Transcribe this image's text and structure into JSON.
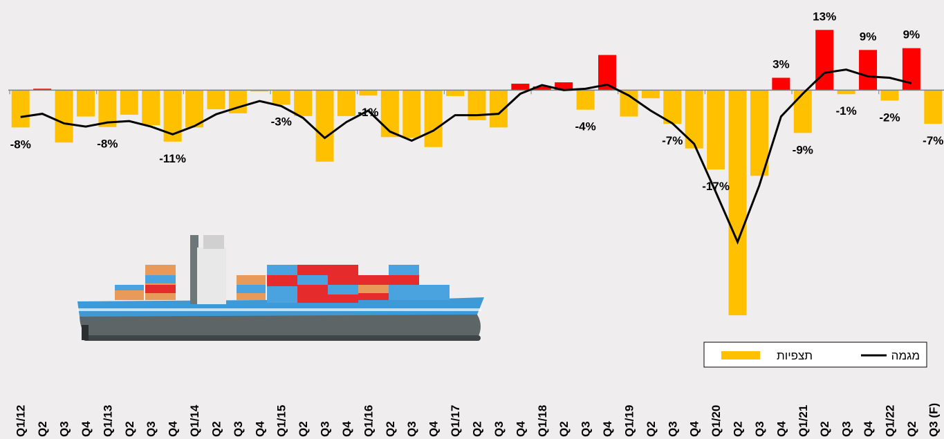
{
  "chart_data": {
    "type": "bar",
    "categories": [
      "Q1/12",
      "Q2",
      "Q3",
      "Q4",
      "Q1/13",
      "Q2",
      "Q3",
      "Q4",
      "Q1/14",
      "Q2",
      "Q3",
      "Q4",
      "Q1/15",
      "Q2",
      "Q3",
      "Q4",
      "Q1/16",
      "Q2",
      "Q3",
      "Q4",
      "Q1/17",
      "Q2",
      "Q3",
      "Q4",
      "Q1/18",
      "Q2",
      "Q3",
      "Q4",
      "Q1/19",
      "Q2",
      "Q3",
      "Q4",
      "Q1/20",
      "Q2",
      "Q3",
      "Q4",
      "Q1/21",
      "Q2",
      "Q3",
      "Q4",
      "Q1/22",
      "Q2",
      "Q3 (F)"
    ],
    "series": [
      {
        "name": "תצפיות",
        "type": "bar",
        "color": "#ffc000",
        "positive_color": "#ff0000",
        "values": [
          -8.2,
          0.3,
          -11.5,
          -5.8,
          -8.1,
          -5.4,
          -7.7,
          -11.3,
          -8.2,
          -4.2,
          -5.1,
          -0.3,
          -3.2,
          -5.7,
          -15.7,
          -5.7,
          -1.2,
          -10.3,
          -10.5,
          -12.5,
          -1.3,
          -6.6,
          -8.2,
          1.4,
          0.8,
          1.7,
          -4.3,
          7.7,
          -5.8,
          -1.8,
          -7.4,
          -12.8,
          -17.4,
          -49.4,
          -18.8,
          2.7,
          -9.4,
          13.2,
          -0.9,
          8.8,
          -2.3,
          9.2,
          -7.4
        ],
        "value_labels": [
          "-8%",
          null,
          null,
          null,
          "-8%",
          null,
          null,
          "-11%",
          null,
          null,
          null,
          null,
          "-3%",
          null,
          null,
          null,
          "-1%",
          null,
          null,
          null,
          null,
          null,
          null,
          null,
          null,
          null,
          "-4%",
          null,
          null,
          null,
          "-7%",
          null,
          "-17%",
          null,
          null,
          "3%",
          "-9%",
          "13%",
          "-1%",
          "9%",
          "-2%",
          "9%",
          "-7%"
        ]
      },
      {
        "name": "מגמה",
        "type": "line",
        "color": "#000000",
        "values": [
          -5.9,
          -5.2,
          -7.3,
          -8.0,
          -7.1,
          -6.8,
          -8.0,
          -9.7,
          -7.9,
          -5.3,
          -3.8,
          -2.4,
          -3.5,
          -6.1,
          -10.5,
          -7.0,
          -4.5,
          -9.1,
          -11.1,
          -8.9,
          -5.5,
          -5.5,
          -5.2,
          -0.8,
          1.1,
          0.0,
          0.3,
          1.2,
          -1.2,
          -4.5,
          -7.3,
          -11.8,
          -22.4,
          -33.3,
          -20.9,
          -5.8,
          -0.8,
          3.8,
          4.5,
          3.0,
          2.7,
          1.5,
          null
        ]
      }
    ],
    "ylim": [
      -50,
      14
    ],
    "legend": "bottom-right"
  }
}
